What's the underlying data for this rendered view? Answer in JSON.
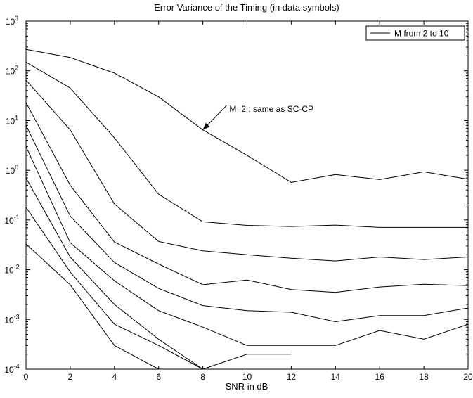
{
  "chart_data": {
    "type": "line",
    "title": "Error Variance of the Timing (in data symbols)",
    "xlabel": "SNR in dB",
    "ylabel": "",
    "xlim": [
      0,
      20
    ],
    "ylim": [
      0.0001,
      1000
    ],
    "yscale": "log",
    "grid": false,
    "legend": {
      "position": "top-right",
      "label": "M from 2 to 10"
    },
    "x_ticks": [
      "0",
      "2",
      "4",
      "6",
      "8",
      "10",
      "12",
      "14",
      "16",
      "18",
      "20"
    ],
    "y_ticks": [
      {
        "base": "10",
        "exp": "-4"
      },
      {
        "base": "10",
        "exp": "-3"
      },
      {
        "base": "10",
        "exp": "-2"
      },
      {
        "base": "10",
        "exp": "-1"
      },
      {
        "base": "10",
        "exp": "0"
      },
      {
        "base": "10",
        "exp": "1"
      },
      {
        "base": "10",
        "exp": "2"
      },
      {
        "base": "10",
        "exp": "3"
      }
    ],
    "annotation": {
      "text": "M=2 : same as SC-CP",
      "x": 9.2,
      "y": 15,
      "arrow_to": [
        8,
        6.5
      ]
    },
    "series": [
      {
        "x": [
          0,
          2,
          4,
          6,
          8,
          10,
          12,
          14,
          16,
          18,
          20
        ],
        "values": [
          270,
          185,
          90,
          30,
          6.5,
          2,
          0.57,
          0.82,
          0.65,
          0.93,
          0.66
        ]
      },
      {
        "x": [
          0,
          2,
          4,
          6,
          8,
          10,
          12,
          14,
          16,
          18,
          20
        ],
        "values": [
          150,
          45,
          4.5,
          0.33,
          0.092,
          0.078,
          0.074,
          0.079,
          0.071,
          0.071,
          0.071
        ]
      },
      {
        "x": [
          0,
          2,
          4,
          6,
          8,
          10,
          12,
          14,
          16,
          18,
          20
        ],
        "values": [
          65,
          6.5,
          0.21,
          0.037,
          0.024,
          0.02,
          0.017,
          0.015,
          0.018,
          0.016,
          0.018
        ]
      },
      {
        "x": [
          0,
          2,
          4,
          6,
          8,
          10,
          12,
          14,
          16,
          18,
          20
        ],
        "values": [
          23,
          0.5,
          0.036,
          0.013,
          0.005,
          0.0062,
          0.004,
          0.0035,
          0.0045,
          0.0051,
          0.0048
        ]
      },
      {
        "x": [
          0,
          2,
          4,
          6,
          8,
          10,
          12,
          14,
          16,
          18,
          20
        ],
        "values": [
          8,
          0.12,
          0.014,
          0.0042,
          0.0019,
          0.0015,
          0.0014,
          0.0009,
          0.0012,
          0.0012,
          0.0017
        ]
      },
      {
        "x": [
          0,
          2,
          4,
          6,
          8,
          10,
          12,
          14,
          16,
          18,
          20
        ],
        "values": [
          3,
          0.035,
          0.006,
          0.0015,
          0.0007,
          0.0003,
          0.0003,
          0.0003,
          0.0006,
          0.0004,
          0.0008
        ]
      },
      {
        "x": [
          0,
          2,
          4,
          6,
          8
        ],
        "values": [
          0.7,
          0.018,
          0.002,
          0.0004,
          0.0001
        ]
      },
      {
        "x": [
          0,
          2,
          4,
          6,
          8,
          10,
          12
        ],
        "values": [
          0.18,
          0.009,
          0.0008,
          0.0003,
          0.0001,
          0.0002,
          0.0002
        ]
      },
      {
        "x": [
          0,
          2,
          4,
          6
        ],
        "values": [
          0.033,
          0.005,
          0.0003,
          0.0001
        ]
      }
    ]
  }
}
